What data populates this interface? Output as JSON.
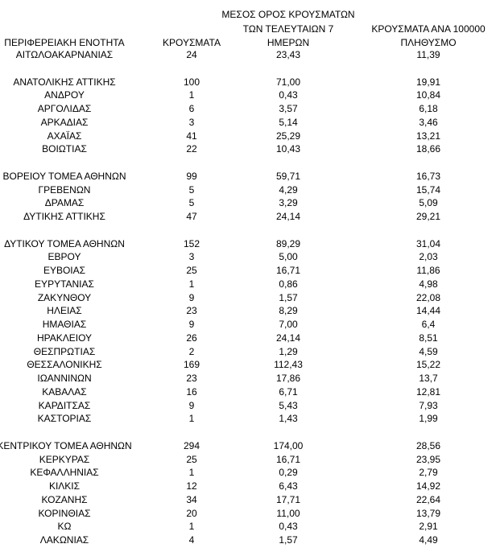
{
  "table": {
    "headers": [
      [
        "ΠΕΡΙΦΕΡΕΙΑΚΗ ΕΝΟΤΗΤΑ"
      ],
      [
        "ΚΡΟΥΣΜΑΤΑ"
      ],
      [
        "ΜΕΣΟΣ ΟΡΟΣ ΚΡΟΥΣΜΑΤΩΝ",
        "ΤΩΝ ΤΕΛΕΥΤΑΙΩΝ 7",
        "ΗΜΕΡΩΝ"
      ],
      [
        "ΚΡΟΥΣΜΑΤΑ ΑΝΑ 100000",
        "ΠΛΗΘΥΣΜΟ"
      ]
    ],
    "groups": [
      [
        [
          "ΑΙΤΩΛΟΑΚΑΡΝΑΝΙΑΣ",
          "24",
          "23,43",
          "11,39"
        ]
      ],
      [
        [
          "ΑΝΑΤΟΛΙΚΗΣ ΑΤΤΙΚΗΣ",
          "100",
          "71,00",
          "19,91"
        ],
        [
          "ΑΝΔΡΟΥ",
          "1",
          "0,43",
          "10,84"
        ],
        [
          "ΑΡΓΟΛΙΔΑΣ",
          "6",
          "3,57",
          "6,18"
        ],
        [
          "ΑΡΚΑΔΙΑΣ",
          "3",
          "5,14",
          "3,46"
        ],
        [
          "ΑΧΑΪΑΣ",
          "41",
          "25,29",
          "13,21"
        ],
        [
          "ΒΟΙΩΤΙΑΣ",
          "22",
          "10,43",
          "18,66"
        ]
      ],
      [
        [
          "ΒΟΡΕΙΟΥ ΤΟΜΕΑ ΑΘΗΝΩΝ",
          "99",
          "59,71",
          "16,73"
        ],
        [
          "ΓΡΕΒΕΝΩΝ",
          "5",
          "4,29",
          "15,74"
        ],
        [
          "ΔΡΑΜΑΣ",
          "5",
          "3,29",
          "5,09"
        ],
        [
          "ΔΥΤΙΚΗΣ ΑΤΤΙΚΗΣ",
          "47",
          "24,14",
          "29,21"
        ]
      ],
      [
        [
          "ΔΥΤΙΚΟΥ ΤΟΜΕΑ ΑΘΗΝΩΝ",
          "152",
          "89,29",
          "31,04"
        ],
        [
          "ΕΒΡΟΥ",
          "3",
          "5,00",
          "2,03"
        ],
        [
          "ΕΥΒΟΙΑΣ",
          "25",
          "16,71",
          "11,86"
        ],
        [
          "ΕΥΡΥΤΑΝΙΑΣ",
          "1",
          "0,86",
          "4,98"
        ],
        [
          "ΖΑΚΥΝΘΟΥ",
          "9",
          "1,57",
          "22,08"
        ],
        [
          "ΗΛΕΙΑΣ",
          "23",
          "8,29",
          "14,44"
        ],
        [
          "ΗΜΑΘΙΑΣ",
          "9",
          "7,00",
          "6,4"
        ],
        [
          "ΗΡΑΚΛΕΙΟΥ",
          "26",
          "24,14",
          "8,51"
        ],
        [
          "ΘΕΣΠΡΩΤΙΑΣ",
          "2",
          "1,29",
          "4,59"
        ],
        [
          "ΘΕΣΣΑΛΟΝΙΚΗΣ",
          "169",
          "112,43",
          "15,22"
        ],
        [
          "ΙΩΑΝΝΙΝΩΝ",
          "23",
          "17,86",
          "13,7"
        ],
        [
          "ΚΑΒΑΛΑΣ",
          "16",
          "6,71",
          "12,81"
        ],
        [
          "ΚΑΡΔΙΤΣΑΣ",
          "9",
          "5,43",
          "7,93"
        ],
        [
          "ΚΑΣΤΟΡΙΑΣ",
          "1",
          "1,43",
          "1,99"
        ]
      ],
      [
        [
          "ΚΕΝΤΡΙΚΟΥ ΤΟΜΕΑ ΑΘΗΝΩΝ",
          "294",
          "174,00",
          "28,56"
        ],
        [
          "ΚΕΡΚΥΡΑΣ",
          "25",
          "16,71",
          "23,95"
        ],
        [
          "ΚΕΦΑΛΛΗΝΙΑΣ",
          "1",
          "0,29",
          "2,79"
        ],
        [
          "ΚΙΛΚΙΣ",
          "12",
          "6,43",
          "14,92"
        ],
        [
          "ΚΟΖΑΝΗΣ",
          "34",
          "17,71",
          "22,64"
        ],
        [
          "ΚΟΡΙΝΘΙΑΣ",
          "20",
          "11,00",
          "13,79"
        ],
        [
          "ΚΩ",
          "1",
          "0,43",
          "2,91"
        ],
        [
          "ΛΑΚΩΝΙΑΣ",
          "4",
          "1,57",
          "4,49"
        ]
      ]
    ]
  }
}
